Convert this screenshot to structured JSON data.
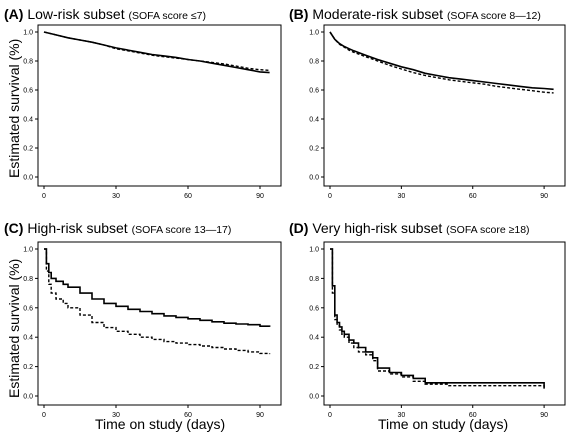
{
  "y_axis_label": "Estimated survival (%)",
  "x_axis_label": "Time on study (days)",
  "chart_data": [
    {
      "type": "line",
      "panel_label": "(A)",
      "title": "Low-risk subset",
      "subtitle": "(SOFA score ≤7)",
      "xlim": [
        0,
        95
      ],
      "ylim": [
        0,
        1.0
      ],
      "x_ticks": [
        0,
        30,
        60,
        90
      ],
      "y_ticks": [
        0.0,
        0.2,
        0.4,
        0.6,
        0.8,
        1.0
      ],
      "y_tick_labels": [
        "0.0",
        "0.2",
        "0.4",
        "0.6",
        "0.8",
        "1.0"
      ],
      "series": [
        {
          "style": "solid",
          "step": false,
          "x": [
            0,
            5,
            10,
            15,
            20,
            25,
            30,
            35,
            40,
            45,
            50,
            55,
            60,
            65,
            70,
            75,
            80,
            85,
            90,
            94
          ],
          "y": [
            1.0,
            0.98,
            0.96,
            0.945,
            0.93,
            0.91,
            0.89,
            0.875,
            0.86,
            0.845,
            0.835,
            0.825,
            0.81,
            0.8,
            0.785,
            0.77,
            0.755,
            0.74,
            0.725,
            0.72
          ]
        },
        {
          "style": "dashed",
          "step": false,
          "x": [
            0,
            5,
            10,
            15,
            20,
            25,
            30,
            35,
            40,
            45,
            50,
            55,
            60,
            65,
            70,
            75,
            80,
            85,
            90,
            94
          ],
          "y": [
            1.0,
            0.98,
            0.96,
            0.945,
            0.93,
            0.91,
            0.885,
            0.87,
            0.855,
            0.84,
            0.83,
            0.82,
            0.81,
            0.8,
            0.79,
            0.78,
            0.765,
            0.75,
            0.74,
            0.735
          ]
        }
      ]
    },
    {
      "type": "line",
      "panel_label": "(B)",
      "title": "Moderate-risk subset",
      "subtitle": "(SOFA score 8—12)",
      "xlim": [
        0,
        95
      ],
      "ylim": [
        0,
        1.0
      ],
      "x_ticks": [
        0,
        30,
        60,
        90
      ],
      "y_ticks": [
        0.0,
        0.2,
        0.4,
        0.6,
        0.8,
        1.0
      ],
      "y_tick_labels": [
        "0.0",
        "0.2",
        "0.4",
        "0.6",
        "0.8",
        "1.0"
      ],
      "series": [
        {
          "style": "solid",
          "step": false,
          "x": [
            0,
            2,
            4,
            6,
            8,
            10,
            15,
            20,
            25,
            30,
            35,
            40,
            45,
            50,
            55,
            60,
            65,
            70,
            75,
            80,
            85,
            90,
            94
          ],
          "y": [
            1.0,
            0.95,
            0.92,
            0.9,
            0.885,
            0.87,
            0.84,
            0.81,
            0.785,
            0.76,
            0.74,
            0.715,
            0.7,
            0.685,
            0.675,
            0.665,
            0.655,
            0.645,
            0.635,
            0.625,
            0.615,
            0.61,
            0.605
          ]
        },
        {
          "style": "dashed",
          "step": false,
          "x": [
            0,
            2,
            4,
            6,
            8,
            10,
            15,
            20,
            25,
            30,
            35,
            40,
            45,
            50,
            55,
            60,
            65,
            70,
            75,
            80,
            85,
            90,
            94
          ],
          "y": [
            1.0,
            0.95,
            0.915,
            0.895,
            0.875,
            0.86,
            0.83,
            0.8,
            0.77,
            0.745,
            0.72,
            0.7,
            0.685,
            0.67,
            0.66,
            0.65,
            0.64,
            0.625,
            0.615,
            0.605,
            0.595,
            0.585,
            0.58
          ]
        }
      ]
    },
    {
      "type": "line",
      "panel_label": "(C)",
      "title": "High-risk subset",
      "subtitle": "(SOFA score 13—17)",
      "xlim": [
        0,
        95
      ],
      "ylim": [
        0,
        1.0
      ],
      "x_ticks": [
        0,
        30,
        60,
        90
      ],
      "y_ticks": [
        0.0,
        0.2,
        0.4,
        0.6,
        0.8,
        1.0
      ],
      "y_tick_labels": [
        "0.0",
        "0.2",
        "0.4",
        "0.6",
        "0.8",
        "1.0"
      ],
      "series": [
        {
          "style": "solid",
          "step": true,
          "x": [
            0,
            1,
            2,
            3,
            5,
            8,
            10,
            15,
            20,
            25,
            30,
            35,
            40,
            45,
            50,
            55,
            60,
            65,
            70,
            75,
            80,
            85,
            90,
            94
          ],
          "y": [
            1.0,
            0.9,
            0.84,
            0.8,
            0.78,
            0.76,
            0.74,
            0.7,
            0.66,
            0.63,
            0.61,
            0.59,
            0.575,
            0.56,
            0.545,
            0.535,
            0.525,
            0.515,
            0.505,
            0.495,
            0.49,
            0.485,
            0.475,
            0.47
          ]
        },
        {
          "style": "dashed",
          "step": true,
          "x": [
            0,
            1,
            2,
            3,
            5,
            8,
            10,
            15,
            20,
            25,
            30,
            35,
            40,
            45,
            50,
            55,
            60,
            65,
            70,
            75,
            80,
            85,
            90,
            94
          ],
          "y": [
            1.0,
            0.85,
            0.76,
            0.7,
            0.66,
            0.63,
            0.6,
            0.55,
            0.5,
            0.465,
            0.44,
            0.42,
            0.4,
            0.385,
            0.37,
            0.36,
            0.35,
            0.34,
            0.33,
            0.32,
            0.31,
            0.3,
            0.29,
            0.285
          ]
        }
      ]
    },
    {
      "type": "line",
      "panel_label": "(D)",
      "title": "Very high-risk subset",
      "subtitle": "(SOFA score ≥18)",
      "xlim": [
        0,
        95
      ],
      "ylim": [
        0,
        1.0
      ],
      "x_ticks": [
        0,
        30,
        60,
        90
      ],
      "y_ticks": [
        0.0,
        0.2,
        0.4,
        0.6,
        0.8,
        1.0
      ],
      "y_tick_labels": [
        "0.0",
        "0.2",
        "0.4",
        "0.6",
        "0.8",
        "1.0"
      ],
      "series": [
        {
          "style": "solid",
          "step": true,
          "x": [
            0,
            1,
            2,
            3,
            4,
            5,
            6,
            8,
            10,
            12,
            15,
            18,
            20,
            25,
            30,
            35,
            40,
            50,
            89,
            90
          ],
          "y": [
            1.0,
            0.75,
            0.55,
            0.5,
            0.47,
            0.44,
            0.42,
            0.38,
            0.36,
            0.33,
            0.3,
            0.26,
            0.19,
            0.16,
            0.14,
            0.12,
            0.09,
            0.09,
            0.09,
            0.05
          ]
        },
        {
          "style": "dashed",
          "step": true,
          "x": [
            0,
            1,
            2,
            3,
            4,
            5,
            6,
            8,
            10,
            12,
            15,
            18,
            20,
            25,
            30,
            35,
            40,
            50,
            89,
            90
          ],
          "y": [
            1.0,
            0.7,
            0.52,
            0.48,
            0.45,
            0.42,
            0.4,
            0.36,
            0.33,
            0.3,
            0.28,
            0.24,
            0.17,
            0.15,
            0.13,
            0.1,
            0.08,
            0.07,
            0.07,
            0.06
          ]
        }
      ]
    }
  ]
}
